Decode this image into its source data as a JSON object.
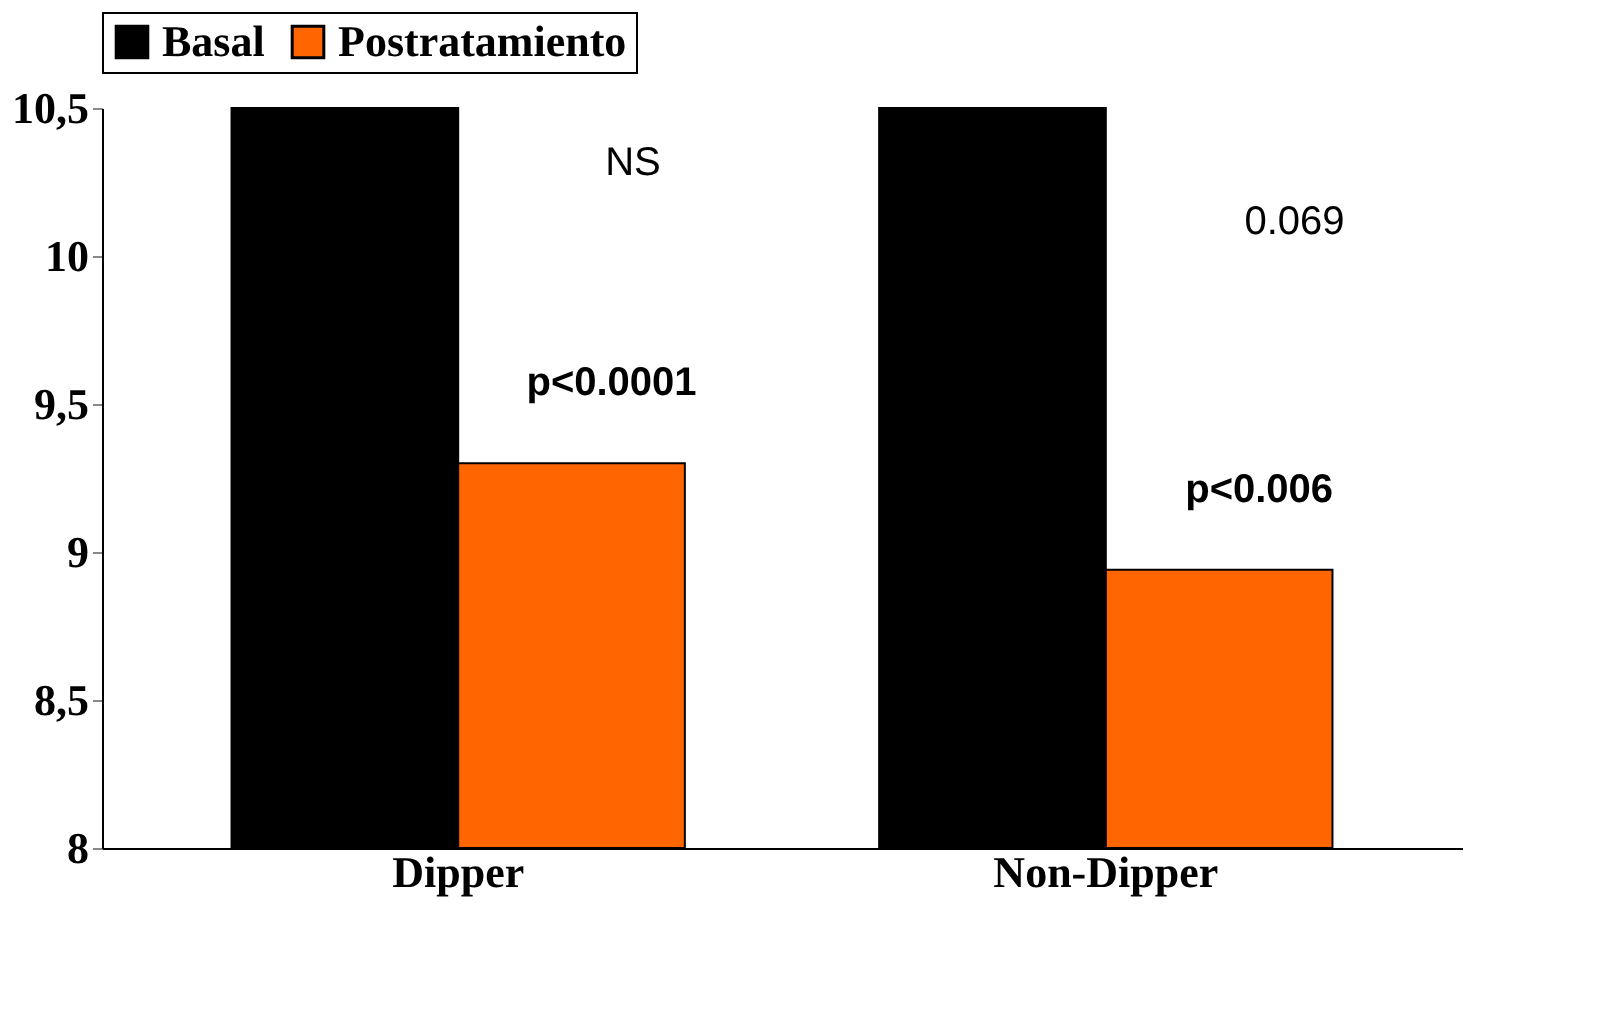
{
  "chart_data": {
    "type": "bar",
    "categories": [
      "Dipper",
      "Non-Dipper"
    ],
    "series": [
      {
        "name": "Basal",
        "color": "#000000",
        "values": [
          10.5,
          10.5
        ]
      },
      {
        "name": "Postratamiento",
        "color": "#ff6600",
        "values": [
          9.3,
          8.94
        ]
      }
    ],
    "ylim": [
      8,
      10.5
    ],
    "yticks": [
      8,
      {
        "value": 8.5,
        "label": "8,5"
      },
      9,
      {
        "value": 9.5,
        "label": "9,5"
      },
      10,
      {
        "value": 10.5,
        "label": "10,5"
      }
    ],
    "grid": false,
    "legend": "top",
    "annotations": [
      "NS",
      "0.069",
      {
        "text": "p<0.0001",
        "x": "Dipper",
        "y": 9.3
      },
      {
        "text": "p<0.006",
        "x": "Non-Dipper",
        "y": 8.94
      }
    ]
  }
}
